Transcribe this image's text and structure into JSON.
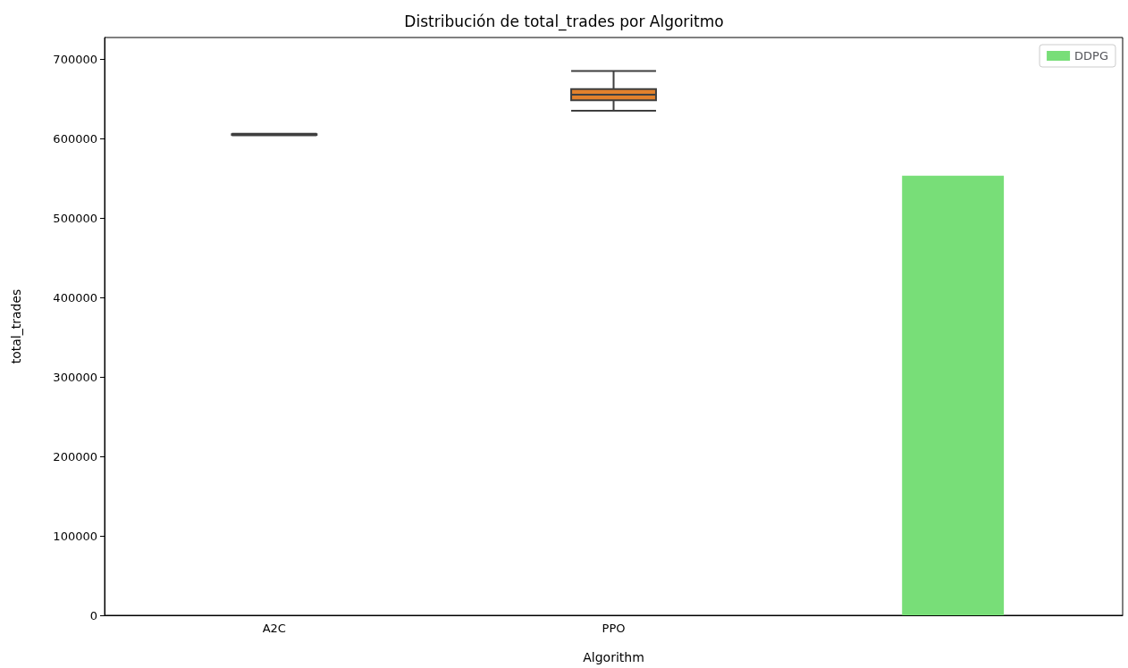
{
  "chart_data": {
    "type": "box",
    "title": "Distribución de total_trades por Algoritmo",
    "xlabel": "Algorithm",
    "ylabel": "total_trades",
    "categories": [
      "A2C",
      "PPO",
      null
    ],
    "series": [
      {
        "colors": [
          "#3274a1",
          "#e1812c",
          null
        ],
        "boxes": [
          {
            "low": 604000,
            "q1": 604500,
            "median": 605000,
            "q3": 605500,
            "high": 606000
          },
          {
            "low": 635000,
            "q1": 648000,
            "median": 655000,
            "q3": 662000,
            "high": 685000
          },
          null
        ]
      },
      {
        "type": "bar",
        "name": "DDPG",
        "color": "#78de78",
        "values": [
          null,
          null,
          553000
        ]
      }
    ],
    "ylim": [
      0,
      727000
    ],
    "yticks": [
      0,
      100000,
      200000,
      300000,
      400000,
      500000,
      600000,
      700000
    ],
    "grid": false,
    "legend": "top right"
  }
}
